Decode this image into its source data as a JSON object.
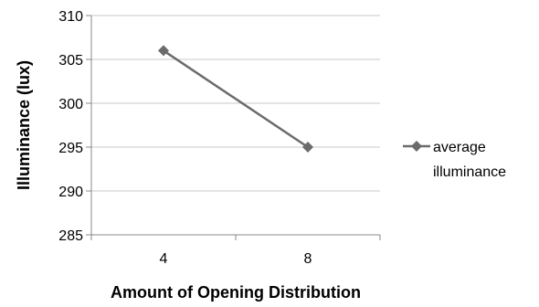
{
  "chart_data": {
    "type": "line",
    "categories": [
      "4",
      "8"
    ],
    "series": [
      {
        "name": "average illuminance",
        "values": [
          306,
          295
        ],
        "color": "#6b6b6b",
        "marker": "diamond"
      }
    ],
    "xlabel": "Amount of Opening Distribution",
    "ylabel": "Illuminance (lux)",
    "ylim": [
      285,
      310
    ],
    "yticks": [
      285,
      290,
      295,
      300,
      305,
      310
    ],
    "grid": true,
    "legend_position": "right",
    "legend_lines": [
      "average",
      "illuminance"
    ]
  }
}
